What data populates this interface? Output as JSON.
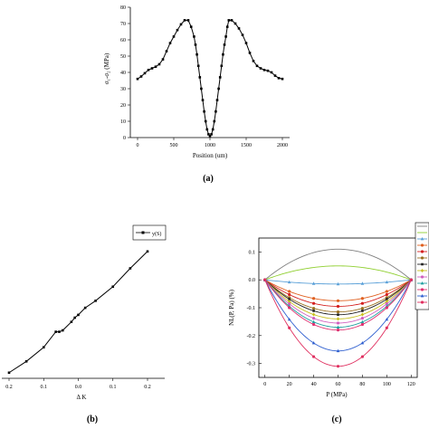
{
  "chart_data": [
    {
      "type": "line",
      "panel": "(a)",
      "xlabel": "Position (um)",
      "ylabel": "σ₁-σ₂ (MPa)",
      "xlim": [
        -100,
        2100
      ],
      "ylim": [
        0,
        80
      ],
      "xticks": [
        0,
        500,
        1000,
        1500,
        2000
      ],
      "yticks": [
        0,
        10,
        20,
        30,
        40,
        50,
        60,
        70,
        80
      ],
      "grid": false,
      "series": [
        {
          "color": "#000000",
          "marker": "square",
          "x": [
            0,
            50,
            100,
            150,
            200,
            250,
            300,
            350,
            400,
            450,
            500,
            550,
            600,
            650,
            700,
            740,
            780,
            800,
            820,
            840,
            860,
            880,
            900,
            920,
            940,
            960,
            980,
            1000,
            1020,
            1040,
            1060,
            1080,
            1100,
            1120,
            1140,
            1160,
            1180,
            1200,
            1220,
            1240,
            1260,
            1300,
            1350,
            1400,
            1450,
            1500,
            1550,
            1600,
            1650,
            1700,
            1750,
            1800,
            1850,
            1900,
            1950,
            2000
          ],
          "y": [
            36,
            37.5,
            39.5,
            41.5,
            42.5,
            43.5,
            45,
            48,
            53,
            58,
            62,
            66,
            69.5,
            72,
            72,
            68,
            62,
            57,
            51,
            44,
            37,
            30,
            23,
            16,
            10,
            5,
            2,
            1,
            2,
            5,
            10,
            16,
            23,
            30,
            37,
            44,
            51,
            57,
            62,
            68,
            72,
            72,
            70,
            67,
            63,
            58,
            52,
            47,
            44,
            42.5,
            41.5,
            41,
            40,
            38,
            36.5,
            36
          ]
        }
      ]
    },
    {
      "type": "line",
      "panel": "(b)",
      "xlabel": "Δ K",
      "xtick_labels": [
        "0.2",
        "0.1",
        "0.0",
        "0.1",
        "0.2"
      ],
      "legend": [
        "y(S)"
      ],
      "legend_position": "top-right",
      "grid": false,
      "series": [
        {
          "name": "y(S)",
          "color": "#000000",
          "marker": "square",
          "x": [
            -0.2,
            -0.15,
            -0.1,
            -0.065,
            -0.055,
            -0.045,
            -0.02,
            -0.01,
            0,
            0.02,
            0.05,
            0.1,
            0.15,
            0.2
          ],
          "y": [
            -0.56,
            -0.48,
            -0.38,
            -0.27,
            -0.27,
            -0.26,
            -0.2,
            -0.17,
            -0.15,
            -0.1,
            -0.05,
            0.05,
            0.18,
            0.3
          ]
        }
      ]
    },
    {
      "type": "line",
      "panel": "(c)",
      "xlabel": "P (MPa)",
      "ylabel": "NL(P, Pa) (%)",
      "xlim": [
        -5,
        125
      ],
      "ylim": [
        -0.35,
        0.15
      ],
      "xticks": [
        0,
        20,
        40,
        60,
        80,
        100,
        120
      ],
      "yticks": [
        0.1,
        0,
        -0.1,
        -0.2,
        -0.3
      ],
      "ytick_labels": [
        "0.1",
        "0.0",
        "-0.1",
        "-0.2",
        "-0.3"
      ],
      "legend_position": "right",
      "grid": false,
      "x": [
        0,
        20,
        40,
        60,
        80,
        100,
        120
      ],
      "series": [
        {
          "color": "#808080",
          "marker": "none",
          "peak": 0.11
        },
        {
          "color": "#8fcf2f",
          "marker": "none",
          "peak": 0.05
        },
        {
          "color": "#5aa0d8",
          "marker": "triangle",
          "peak": -0.015
        },
        {
          "color": "#e06020",
          "marker": "circle",
          "peak": -0.075
        },
        {
          "color": "#d42020",
          "marker": "circle",
          "peak": -0.095
        },
        {
          "color": "#9a7020",
          "marker": "circle",
          "peak": -0.115
        },
        {
          "color": "#202020",
          "marker": "square",
          "peak": -0.125
        },
        {
          "color": "#c8c020",
          "marker": "diamond",
          "peak": -0.14
        },
        {
          "color": "#d060c0",
          "marker": "circle",
          "peak": -0.155
        },
        {
          "color": "#20a0a0",
          "marker": "triangle",
          "peak": -0.17
        },
        {
          "color": "#e03070",
          "marker": "circle",
          "peak": -0.18
        },
        {
          "color": "#3060d0",
          "marker": "triangle",
          "peak": -0.255
        },
        {
          "color": "#e03060",
          "marker": "circle",
          "peak": -0.31
        }
      ]
    }
  ],
  "captions": {
    "a": "(a)",
    "b": "(b)",
    "c": "(c)"
  }
}
